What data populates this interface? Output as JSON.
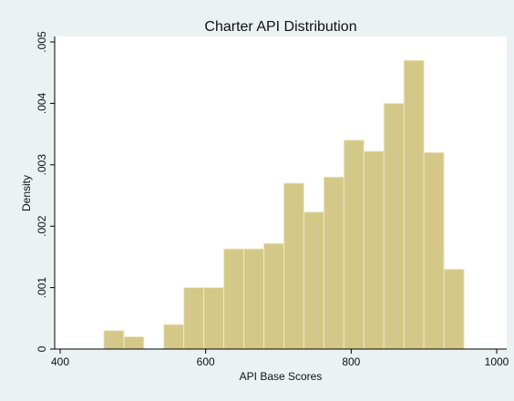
{
  "chart_data": {
    "type": "histogram",
    "title": "Charter API Distribution",
    "x_label": "API Base Scores",
    "y_label": "Density",
    "bins": [
      460,
      487.5,
      515,
      542.5,
      570,
      597.5,
      625,
      652.5,
      680,
      707.5,
      735,
      762.5,
      790,
      817.5,
      845,
      872.5,
      900,
      927.5,
      955
    ],
    "values": [
      0.0003,
      0.0002,
      0,
      0.0004,
      0.001,
      0.001,
      0.00163,
      0.00163,
      0.00172,
      0.0027,
      0.00223,
      0.0028,
      0.0034,
      0.00322,
      0.004,
      0.0047,
      0.0032,
      0.0013
    ],
    "color": "#d3c887",
    "xlim": [
      400,
      1000
    ],
    "xticks": [
      400,
      600,
      800,
      1000
    ],
    "ylim": [
      0,
      0.005
    ],
    "yticks": [
      0,
      {
        "value": 0.001,
        "label": ".001"
      },
      {
        "value": 0.002,
        "label": ".002"
      },
      {
        "value": 0.003,
        "label": ".003"
      },
      {
        "value": 0.004,
        "label": ".004"
      },
      {
        "value": 0.005,
        "label": ".005"
      }
    ]
  }
}
